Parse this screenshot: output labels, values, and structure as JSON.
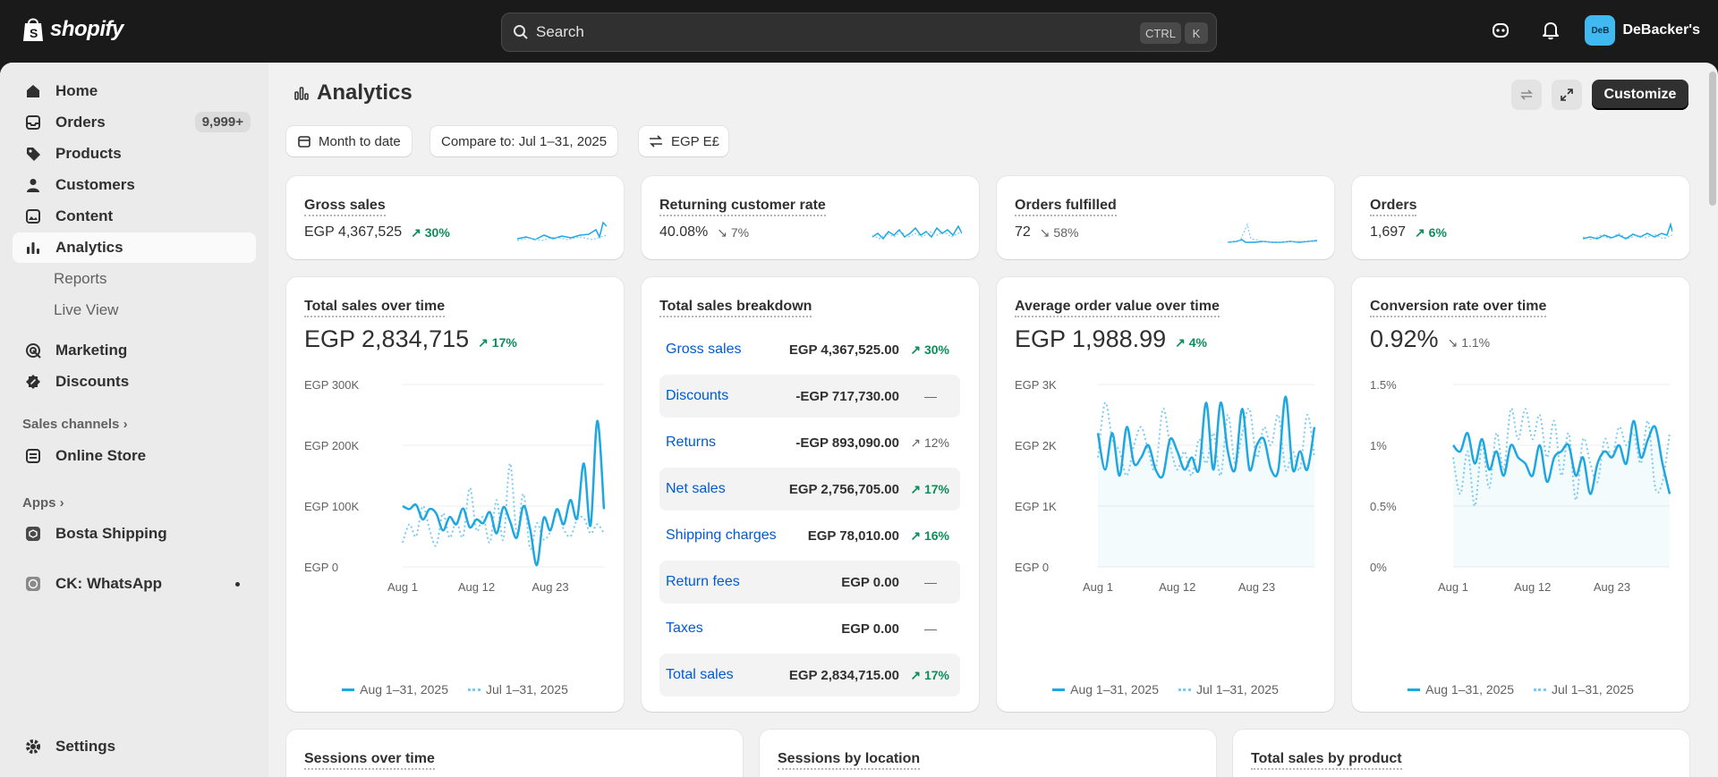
{
  "topbar": {
    "logo_text": "shopify",
    "search_placeholder": "Search",
    "kbd_ctrl": "CTRL",
    "kbd_k": "K",
    "avatar_initials": "DeB",
    "store_name": "DeBacker's"
  },
  "sidebar": {
    "items": [
      {
        "label": "Home",
        "icon": "home-icon"
      },
      {
        "label": "Orders",
        "icon": "orders-icon",
        "badge": "9,999+"
      },
      {
        "label": "Products",
        "icon": "tag-icon"
      },
      {
        "label": "Customers",
        "icon": "person-icon"
      },
      {
        "label": "Content",
        "icon": "image-icon"
      },
      {
        "label": "Analytics",
        "icon": "bar-chart-icon"
      },
      {
        "label": "Reports"
      },
      {
        "label": "Live View"
      },
      {
        "label": "Marketing",
        "icon": "target-icon"
      },
      {
        "label": "Discounts",
        "icon": "discount-icon"
      }
    ],
    "sales_channels_label": "Sales channels",
    "online_store": "Online Store",
    "apps_label": "Apps",
    "bosta": "Bosta Shipping",
    "ck_whatsapp": "CK: WhatsApp",
    "settings": "Settings"
  },
  "page": {
    "title": "Analytics",
    "customize_label": "Customize",
    "filters": {
      "date": "Month to date",
      "compare": "Compare to: Jul 1–31, 2025",
      "currency": "EGP E£"
    }
  },
  "kpis": [
    {
      "title": "Gross sales",
      "value": "EGP 4,367,525",
      "change": "30%",
      "direction": "up"
    },
    {
      "title": "Returning customer rate",
      "value": "40.08%",
      "change": "7%",
      "direction": "down"
    },
    {
      "title": "Orders fulfilled",
      "value": "72",
      "change": "58%",
      "direction": "down"
    },
    {
      "title": "Orders",
      "value": "1,697",
      "change": "6%",
      "direction": "up"
    }
  ],
  "cards": {
    "total_sales": {
      "title": "Total sales over time",
      "value": "EGP 2,834,715",
      "change": "17%"
    },
    "breakdown": {
      "title": "Total sales breakdown",
      "rows": [
        {
          "label": "Gross sales",
          "value": "EGP 4,367,525.00",
          "change": "30%",
          "kind": "up"
        },
        {
          "label": "Discounts",
          "value": "-EGP 717,730.00",
          "change": "—",
          "kind": "dash"
        },
        {
          "label": "Returns",
          "value": "-EGP 893,090.00",
          "change": "12%",
          "kind": "neg"
        },
        {
          "label": "Net sales",
          "value": "EGP 2,756,705.00",
          "change": "17%",
          "kind": "up"
        },
        {
          "label": "Shipping charges",
          "value": "EGP 78,010.00",
          "change": "16%",
          "kind": "up"
        },
        {
          "label": "Return fees",
          "value": "EGP 0.00",
          "change": "—",
          "kind": "dash"
        },
        {
          "label": "Taxes",
          "value": "EGP 0.00",
          "change": "—",
          "kind": "dash"
        },
        {
          "label": "Total sales",
          "value": "EGP 2,834,715.00",
          "change": "17%",
          "kind": "up"
        }
      ]
    },
    "aov": {
      "title": "Average order value over time",
      "value": "EGP 1,988.99",
      "change": "4%"
    },
    "conversion": {
      "title": "Conversion rate over time",
      "value": "0.92%",
      "change": "1.1%"
    },
    "sessions_over_time": {
      "title": "Sessions over time"
    },
    "sessions_by_location": {
      "title": "Sessions by location"
    },
    "sales_by_product": {
      "title": "Total sales by product"
    }
  },
  "legend": {
    "current": "Aug 1–31, 2025",
    "previous": "Jul 1–31, 2025"
  },
  "colors": {
    "current": "#1ea7e1",
    "previous": "#7ccbef",
    "accent_green": "#0c8e5a"
  },
  "chart_data": [
    {
      "type": "line",
      "title": "Total sales over time",
      "x_ticks": [
        "Aug 1",
        "Aug 12",
        "Aug 23"
      ],
      "y_ticks": [
        "EGP 0",
        "EGP 100K",
        "EGP 200K",
        "EGP 300K"
      ],
      "ylim": [
        0,
        300000
      ],
      "series": [
        {
          "name": "Aug 1–31, 2025",
          "values": [
            100000,
            95000,
            102000,
            78000,
            95000,
            88000,
            60000,
            82000,
            70000,
            96000,
            65000,
            78000,
            72000,
            90000,
            55000,
            98000,
            75000,
            48000,
            100000,
            62000,
            3000,
            80000,
            60000,
            95000,
            70000,
            110000,
            80000,
            170000,
            68000,
            240000,
            95000
          ]
        },
        {
          "name": "Jul 1–31, 2025",
          "values": [
            40000,
            70000,
            50000,
            100000,
            62000,
            35000,
            88000,
            48000,
            75000,
            50000,
            130000,
            60000,
            82000,
            40000,
            110000,
            45000,
            170000,
            55000,
            120000,
            30000,
            72000,
            45000,
            58000,
            90000,
            62000,
            50000,
            78000,
            80000,
            55000,
            70000,
            55000
          ]
        }
      ]
    },
    {
      "type": "line",
      "title": "Average order value over time",
      "x_ticks": [
        "Aug 1",
        "Aug 12",
        "Aug 23"
      ],
      "y_ticks": [
        "EGP 0",
        "EGP 1K",
        "EGP 2K",
        "EGP 3K"
      ],
      "ylim": [
        0,
        3000
      ],
      "series": [
        {
          "name": "Aug 1–31, 2025",
          "values": [
            2200,
            1600,
            2200,
            1500,
            2300,
            1700,
            1800,
            2000,
            1600,
            1500,
            2100,
            1900,
            1600,
            1800,
            1600,
            2700,
            1600,
            2700,
            1900,
            1600,
            2600,
            1600,
            2000,
            2100,
            1600,
            1600,
            2800,
            1600,
            1900,
            1600,
            2300
          ]
        },
        {
          "name": "Jul 1–31, 2025",
          "values": [
            1800,
            2700,
            2100,
            1900,
            1500,
            2000,
            2300,
            1900,
            1600,
            2600,
            2000,
            1600,
            1900,
            1500,
            2100,
            1700,
            2200,
            1500,
            2500,
            1700,
            2200,
            2600,
            1800,
            2300,
            2000,
            2500,
            1600,
            1900,
            1600,
            2500,
            1800
          ]
        }
      ]
    },
    {
      "type": "line",
      "title": "Conversion rate over time",
      "x_ticks": [
        "Aug 1",
        "Aug 12",
        "Aug 23"
      ],
      "y_ticks": [
        "0%",
        "0.5%",
        "1%",
        "1.5%"
      ],
      "ylim": [
        0,
        1.5
      ],
      "series": [
        {
          "name": "Aug 1–31, 2025",
          "values": [
            1.0,
            0.95,
            1.1,
            0.85,
            1.05,
            0.8,
            0.95,
            0.75,
            1.0,
            0.9,
            0.85,
            0.75,
            1.0,
            0.7,
            0.9,
            0.95,
            1.0,
            0.75,
            0.9,
            0.6,
            0.85,
            0.95,
            0.9,
            1.0,
            0.85,
            1.2,
            0.9,
            1.05,
            1.15,
            0.85,
            0.6
          ]
        },
        {
          "name": "Jul 1–31, 2025",
          "values": [
            0.9,
            0.6,
            0.95,
            0.5,
            1.0,
            0.65,
            1.1,
            0.8,
            1.3,
            1.05,
            1.3,
            1.05,
            1.25,
            0.9,
            1.2,
            0.75,
            1.1,
            0.55,
            1.05,
            0.85,
            0.7,
            1.05,
            0.9,
            1.15,
            1.0,
            1.1,
            0.85,
            1.2,
            0.65,
            0.7,
            1.1
          ]
        }
      ]
    }
  ]
}
